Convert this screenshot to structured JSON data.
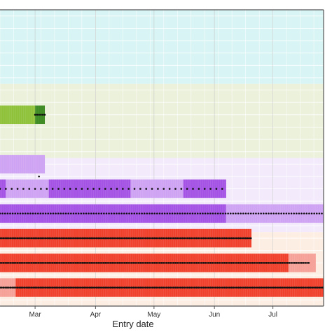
{
  "chart_data": {
    "type": "heatmap",
    "xlabel": "Entry date",
    "x_ticks": [
      "Mar",
      "Apr",
      "May",
      "Jun",
      "Jul"
    ],
    "x_tick_dates": [
      "03-01",
      "04-01",
      "05-01",
      "06-01",
      "07-01"
    ],
    "x_range": [
      "02-12",
      "07-27"
    ],
    "grid": true,
    "bands": [
      {
        "band": "cyan",
        "rows": [
          1,
          2,
          3,
          4,
          5,
          6
        ],
        "color": "#d9f4f4"
      },
      {
        "band": "beige",
        "rows": [
          7,
          8,
          9,
          10,
          11,
          12
        ],
        "color": "#ecf1dc"
      },
      {
        "band": "lavender",
        "rows": [
          13,
          14,
          15,
          16,
          17,
          18
        ],
        "color": "#f3ebfb"
      },
      {
        "band": "peach",
        "rows": [
          19,
          20,
          21,
          22,
          23,
          24
        ],
        "color": "#fdeee4"
      }
    ],
    "blocks": [
      {
        "row": 9,
        "start": "02-12",
        "end": "03-01",
        "color": "#8fc23a"
      },
      {
        "row": 9,
        "start": "03-01",
        "end": "03-06",
        "color": "#3e8a22"
      },
      {
        "row": 13,
        "start": "02-12",
        "end": "03-06",
        "color": "#cfa3f3"
      },
      {
        "row": 15,
        "start": "02-12",
        "end": "02-15",
        "color": "#a453e4"
      },
      {
        "row": 15,
        "start": "02-15",
        "end": "03-08",
        "color": "#cfa3f3"
      },
      {
        "row": 15,
        "start": "03-08",
        "end": "04-19",
        "color": "#a453e4"
      },
      {
        "row": 15,
        "start": "04-19",
        "end": "05-16",
        "color": "#cfa3f3"
      },
      {
        "row": 15,
        "start": "05-16",
        "end": "06-07",
        "color": "#a453e4"
      },
      {
        "row": 17,
        "start": "02-12",
        "end": "06-07",
        "color": "#a453e4"
      },
      {
        "row": 17,
        "start": "06-07",
        "end": "07-27",
        "color": "#cfa3f3"
      },
      {
        "row": 19,
        "start": "02-12",
        "end": "06-20",
        "color": "#f0412d"
      },
      {
        "row": 21,
        "start": "02-12",
        "end": "07-09",
        "color": "#f0412d"
      },
      {
        "row": 21,
        "start": "07-09",
        "end": "07-23",
        "color": "#f6a198"
      },
      {
        "row": 23,
        "start": "02-12",
        "end": "02-20",
        "color": "#f6a198"
      },
      {
        "row": 23,
        "start": "02-20",
        "end": "07-27",
        "color": "#f0412d"
      }
    ],
    "dot_rows": [
      {
        "row": 9,
        "start": "03-01",
        "end": "03-06",
        "step": 1
      },
      {
        "row": 14,
        "start": "03-03",
        "end": "03-03",
        "step": 1
      },
      {
        "row": 15,
        "start": "02-12",
        "end": "06-06",
        "step": 3
      },
      {
        "row": 17,
        "start": "02-12",
        "end": "07-27",
        "step": 1.3
      },
      {
        "row": 19,
        "start": "02-12",
        "end": "06-20",
        "step": 0.9
      },
      {
        "row": 21,
        "start": "02-12",
        "end": "07-20",
        "step": 0.9
      },
      {
        "row": 23,
        "start": "02-12",
        "end": "07-27",
        "step": 0.9
      }
    ]
  }
}
